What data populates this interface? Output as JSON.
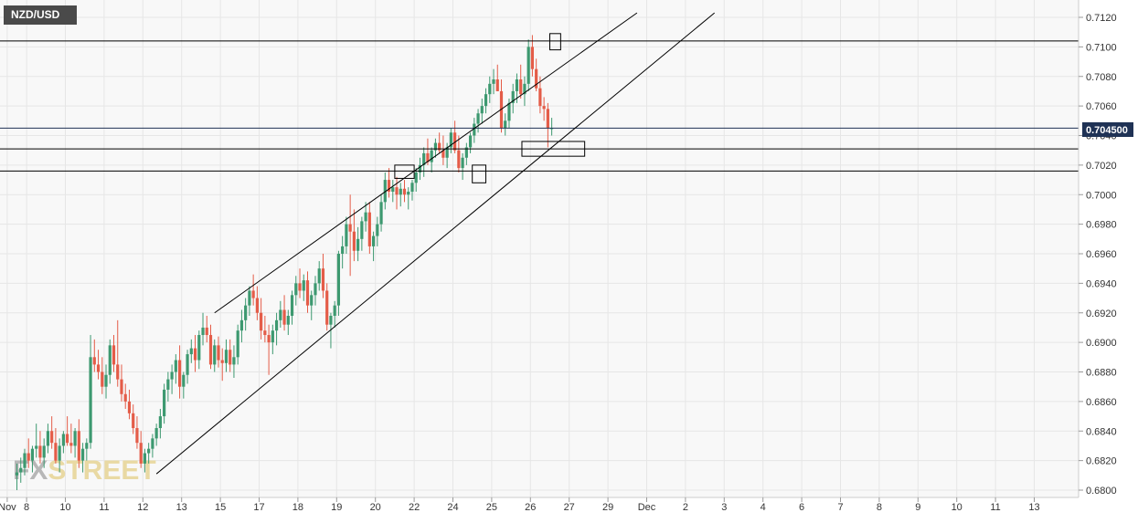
{
  "symbol": "NZD/USD",
  "current_price_label": "0.704500",
  "watermark": {
    "part1": "FX",
    "part2": "STREET"
  },
  "colors": {
    "up": "#3d9970",
    "down": "#e45c48",
    "plot_bg": "#f8f8f8",
    "grid": "#e6e6e6",
    "line": "#000000",
    "badge_bg": "#1f3255"
  },
  "chart_data": {
    "type": "candlestick",
    "title": "NZD/USD",
    "ylim": [
      0.68,
      0.713
    ],
    "y_ticks": [
      "0.7120",
      "0.7100",
      "0.7080",
      "0.7060",
      "0.7040",
      "0.7020",
      "0.7000",
      "0.6980",
      "0.6960",
      "0.6940",
      "0.6920",
      "0.6900",
      "0.6880",
      "0.6860",
      "0.6840",
      "0.6820",
      "0.6800"
    ],
    "y_tick_values": [
      0.712,
      0.71,
      0.708,
      0.706,
      0.704,
      0.702,
      0.7,
      0.698,
      0.696,
      0.694,
      0.692,
      0.69,
      0.688,
      0.686,
      0.684,
      0.682,
      0.68
    ],
    "x_ticks": [
      "Nov",
      "8",
      "10",
      "11",
      "12",
      "13",
      "15",
      "17",
      "18",
      "19",
      "20",
      "22",
      "24",
      "25",
      "26",
      "27",
      "29",
      "Dec",
      "2",
      "3",
      "4",
      "6",
      "7",
      "8",
      "9",
      "10",
      "11",
      "13"
    ],
    "x_tick_index": [
      -2.5,
      2.5,
      12.5,
      22.5,
      32.5,
      42.5,
      52.5,
      62.5,
      72.5,
      82.5,
      92.5,
      102.5,
      112.5,
      122.5,
      132.5,
      142.5,
      152.5,
      162.5,
      172.5,
      182.5,
      192.5,
      202.5,
      212.5,
      222.5,
      232.5,
      242.5,
      252.5,
      262.5
    ],
    "candles_start_index": 0,
    "candles": [
      [
        0.681,
        0.6818,
        0.68,
        0.6812
      ],
      [
        0.6812,
        0.6822,
        0.6805,
        0.6815
      ],
      [
        0.6815,
        0.6828,
        0.681,
        0.6825
      ],
      [
        0.6825,
        0.6835,
        0.6815,
        0.682
      ],
      [
        0.682,
        0.683,
        0.6812,
        0.6828
      ],
      [
        0.6828,
        0.6845,
        0.6822,
        0.683
      ],
      [
        0.683,
        0.684,
        0.6818,
        0.6822
      ],
      [
        0.6822,
        0.6835,
        0.6815,
        0.683
      ],
      [
        0.683,
        0.6845,
        0.6825,
        0.684
      ],
      [
        0.684,
        0.685,
        0.6828,
        0.6832
      ],
      [
        0.6832,
        0.6842,
        0.6818,
        0.682
      ],
      [
        0.682,
        0.6835,
        0.6812,
        0.683
      ],
      [
        0.683,
        0.684,
        0.6825,
        0.6838
      ],
      [
        0.6838,
        0.685,
        0.683,
        0.6832
      ],
      [
        0.6832,
        0.6845,
        0.6825,
        0.683
      ],
      [
        0.683,
        0.6842,
        0.6822,
        0.684
      ],
      [
        0.684,
        0.6848,
        0.6815,
        0.682
      ],
      [
        0.682,
        0.6832,
        0.6812,
        0.6828
      ],
      [
        0.6828,
        0.6835,
        0.682,
        0.6832
      ],
      [
        0.6832,
        0.6905,
        0.6828,
        0.689
      ],
      [
        0.689,
        0.6902,
        0.688,
        0.6885
      ],
      [
        0.6885,
        0.6895,
        0.6875,
        0.688
      ],
      [
        0.688,
        0.689,
        0.6865,
        0.687
      ],
      [
        0.687,
        0.6885,
        0.6862,
        0.6878
      ],
      [
        0.6878,
        0.6902,
        0.6872,
        0.6898
      ],
      [
        0.6898,
        0.6905,
        0.688,
        0.6885
      ],
      [
        0.6885,
        0.6915,
        0.687,
        0.6875
      ],
      [
        0.6875,
        0.6885,
        0.686,
        0.6865
      ],
      [
        0.6865,
        0.6872,
        0.6855,
        0.686
      ],
      [
        0.686,
        0.6868,
        0.6848,
        0.6852
      ],
      [
        0.6852,
        0.6858,
        0.6838,
        0.6842
      ],
      [
        0.6842,
        0.685,
        0.6828,
        0.6832
      ],
      [
        0.6832,
        0.684,
        0.6815,
        0.6818
      ],
      [
        0.6818,
        0.6828,
        0.6812,
        0.6825
      ],
      [
        0.6825,
        0.6832,
        0.6818,
        0.6828
      ],
      [
        0.6828,
        0.6838,
        0.6822,
        0.6835
      ],
      [
        0.6835,
        0.6845,
        0.683,
        0.6842
      ],
      [
        0.6842,
        0.6855,
        0.6835,
        0.685
      ],
      [
        0.685,
        0.6872,
        0.6845,
        0.6868
      ],
      [
        0.6868,
        0.688,
        0.686,
        0.6875
      ],
      [
        0.6875,
        0.6885,
        0.6865,
        0.688
      ],
      [
        0.688,
        0.6892,
        0.6872,
        0.6888
      ],
      [
        0.6888,
        0.6898,
        0.6862,
        0.687
      ],
      [
        0.687,
        0.688,
        0.6862,
        0.6878
      ],
      [
        0.6878,
        0.6895,
        0.6872,
        0.6892
      ],
      [
        0.6892,
        0.6902,
        0.6886,
        0.6896
      ],
      [
        0.6896,
        0.6905,
        0.688,
        0.6888
      ],
      [
        0.6888,
        0.6908,
        0.6882,
        0.6905
      ],
      [
        0.6905,
        0.692,
        0.6898,
        0.691
      ],
      [
        0.691,
        0.6918,
        0.69,
        0.6905
      ],
      [
        0.6905,
        0.6912,
        0.6882,
        0.6885
      ],
      [
        0.6885,
        0.6902,
        0.688,
        0.6898
      ],
      [
        0.6898,
        0.6904,
        0.6883,
        0.6888
      ],
      [
        0.6888,
        0.6896,
        0.6874,
        0.6886
      ],
      [
        0.6886,
        0.6902,
        0.688,
        0.6895
      ],
      [
        0.6895,
        0.6902,
        0.688,
        0.6885
      ],
      [
        0.6885,
        0.6898,
        0.6876,
        0.689
      ],
      [
        0.689,
        0.6912,
        0.6885,
        0.6908
      ],
      [
        0.6908,
        0.6922,
        0.69,
        0.6915
      ],
      [
        0.6915,
        0.693,
        0.6908,
        0.6925
      ],
      [
        0.6925,
        0.6938,
        0.6918,
        0.6935
      ],
      [
        0.6935,
        0.6946,
        0.6925,
        0.693
      ],
      [
        0.693,
        0.6938,
        0.6915,
        0.692
      ],
      [
        0.692,
        0.693,
        0.6902,
        0.6908
      ],
      [
        0.6908,
        0.6918,
        0.69,
        0.6905
      ],
      [
        0.6905,
        0.6912,
        0.6878,
        0.69
      ],
      [
        0.69,
        0.6912,
        0.6892,
        0.6908
      ],
      [
        0.6908,
        0.692,
        0.6898,
        0.6915
      ],
      [
        0.6915,
        0.6928,
        0.691,
        0.6922
      ],
      [
        0.6922,
        0.6932,
        0.6908,
        0.6912
      ],
      [
        0.6912,
        0.6922,
        0.6905,
        0.6918
      ],
      [
        0.6918,
        0.6935,
        0.6912,
        0.6932
      ],
      [
        0.6932,
        0.6945,
        0.6925,
        0.694
      ],
      [
        0.694,
        0.695,
        0.693,
        0.6935
      ],
      [
        0.6935,
        0.6946,
        0.6928,
        0.6942
      ],
      [
        0.6942,
        0.6948,
        0.692,
        0.6925
      ],
      [
        0.6925,
        0.6935,
        0.6915,
        0.6932
      ],
      [
        0.6932,
        0.6945,
        0.6925,
        0.694
      ],
      [
        0.694,
        0.6955,
        0.6935,
        0.695
      ],
      [
        0.695,
        0.696,
        0.693,
        0.6935
      ],
      [
        0.6935,
        0.694,
        0.6908,
        0.6912
      ],
      [
        0.6912,
        0.692,
        0.6896,
        0.6918
      ],
      [
        0.6918,
        0.6928,
        0.691,
        0.6925
      ],
      [
        0.6925,
        0.6962,
        0.6918,
        0.696
      ],
      [
        0.696,
        0.6972,
        0.695,
        0.6965
      ],
      [
        0.6965,
        0.6985,
        0.696,
        0.698
      ],
      [
        0.698,
        0.7,
        0.6945,
        0.6975
      ],
      [
        0.6975,
        0.699,
        0.6955,
        0.6962
      ],
      [
        0.6962,
        0.6978,
        0.6955,
        0.697
      ],
      [
        0.697,
        0.6985,
        0.6962,
        0.6982
      ],
      [
        0.6982,
        0.6995,
        0.6975,
        0.6988
      ],
      [
        0.6988,
        0.6995,
        0.696,
        0.6965
      ],
      [
        0.6965,
        0.6975,
        0.6955,
        0.6972
      ],
      [
        0.6972,
        0.6985,
        0.6965,
        0.698
      ],
      [
        0.698,
        0.7,
        0.6975,
        0.6995
      ],
      [
        0.6995,
        0.7015,
        0.699,
        0.701
      ],
      [
        0.701,
        0.7018,
        0.6998,
        0.7002
      ],
      [
        0.7002,
        0.701,
        0.6995,
        0.7005
      ],
      [
        0.7005,
        0.7012,
        0.699,
        0.7
      ],
      [
        0.7,
        0.7008,
        0.6992,
        0.7004
      ],
      [
        0.7004,
        0.701,
        0.6995,
        0.7
      ],
      [
        0.7,
        0.7005,
        0.699,
        0.7002
      ],
      [
        0.7002,
        0.701,
        0.6996,
        0.7008
      ],
      [
        0.7008,
        0.7018,
        0.7002,
        0.7015
      ],
      [
        0.7015,
        0.7025,
        0.701,
        0.702
      ],
      [
        0.702,
        0.7032,
        0.7012,
        0.7028
      ],
      [
        0.7028,
        0.7038,
        0.702,
        0.7022
      ],
      [
        0.7022,
        0.7032,
        0.7015,
        0.703
      ],
      [
        0.703,
        0.7038,
        0.7025,
        0.7035
      ],
      [
        0.7035,
        0.7042,
        0.7028,
        0.703
      ],
      [
        0.703,
        0.704,
        0.702,
        0.7025
      ],
      [
        0.7025,
        0.7035,
        0.7018,
        0.7032
      ],
      [
        0.7032,
        0.7045,
        0.7028,
        0.7042
      ],
      [
        0.7042,
        0.705,
        0.7028,
        0.703
      ],
      [
        0.703,
        0.704,
        0.7015,
        0.7018
      ],
      [
        0.7018,
        0.7028,
        0.701,
        0.7025
      ],
      [
        0.7025,
        0.7035,
        0.702,
        0.7032
      ],
      [
        0.7032,
        0.7042,
        0.7028,
        0.704
      ],
      [
        0.704,
        0.7052,
        0.7035,
        0.7048
      ],
      [
        0.7048,
        0.7058,
        0.7042,
        0.7055
      ],
      [
        0.7055,
        0.7065,
        0.7048,
        0.706
      ],
      [
        0.706,
        0.7072,
        0.7055,
        0.7068
      ],
      [
        0.7068,
        0.708,
        0.7062,
        0.7075
      ],
      [
        0.7075,
        0.7085,
        0.7068,
        0.7078
      ],
      [
        0.7078,
        0.7088,
        0.707,
        0.707
      ],
      [
        0.707,
        0.7078,
        0.7042,
        0.7045
      ],
      [
        0.7045,
        0.7055,
        0.704,
        0.705
      ],
      [
        0.705,
        0.7065,
        0.7045,
        0.7062
      ],
      [
        0.7062,
        0.7075,
        0.7055,
        0.707
      ],
      [
        0.707,
        0.7082,
        0.7062,
        0.7078
      ],
      [
        0.7078,
        0.7088,
        0.7065,
        0.7068
      ],
      [
        0.7068,
        0.708,
        0.706,
        0.7075
      ],
      [
        0.7075,
        0.7105,
        0.707,
        0.71
      ],
      [
        0.71,
        0.7108,
        0.708,
        0.7085
      ],
      [
        0.7085,
        0.7092,
        0.707,
        0.7072
      ],
      [
        0.7072,
        0.708,
        0.7055,
        0.706
      ],
      [
        0.706,
        0.7066,
        0.705,
        0.7058
      ],
      [
        0.7058,
        0.7062,
        0.7032,
        0.7045
      ],
      [
        0.7045,
        0.7052,
        0.704,
        0.7045
      ]
    ],
    "horizontal_lines": [
      0.7104,
      0.7045,
      0.7031,
      0.7016
    ],
    "trend_lines": [
      {
        "from": [
          51,
          0.692
        ],
        "to": [
          160,
          0.7123
        ]
      },
      {
        "from": [
          36,
          0.6811
        ],
        "to": [
          180,
          0.7123
        ]
      }
    ],
    "boxes": [
      {
        "from": [
          97.5,
          0.702
        ],
        "to": [
          102.5,
          0.7011
        ]
      },
      {
        "from": [
          117.5,
          0.702
        ],
        "to": [
          121,
          0.7008
        ]
      },
      {
        "from": [
          137.5,
          0.7109
        ],
        "to": [
          140.3,
          0.7098
        ]
      },
      {
        "from": [
          130.3,
          0.7036
        ],
        "to": [
          146.5,
          0.7026
        ]
      }
    ]
  }
}
